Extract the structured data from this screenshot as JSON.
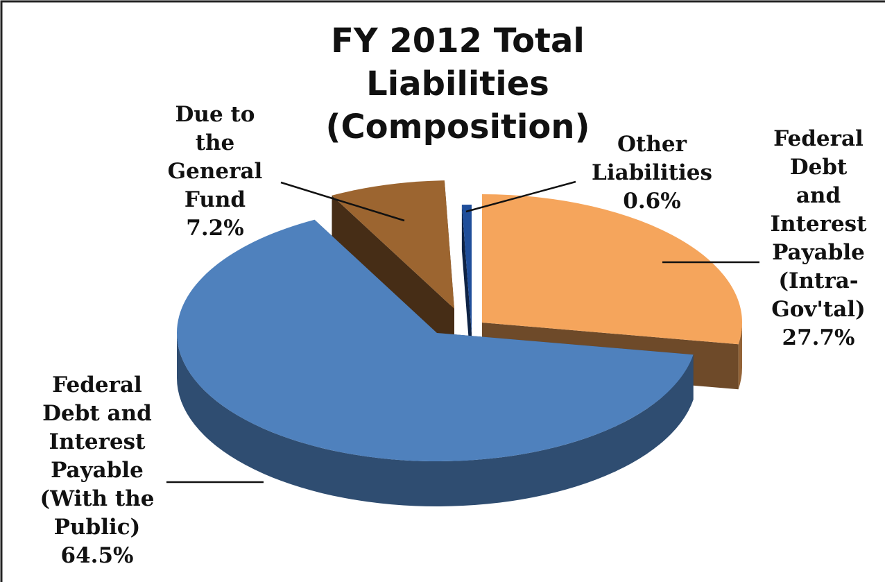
{
  "chart_data": {
    "type": "pie",
    "title": "FY 2012 Total Liabilities\n(Composition)",
    "categories": [
      "Federal\nDebt and\nInterest\nPayable\n(Intra-\nGov'tal)",
      "Federal\nDebt and\nInterest\nPayable\n(With the\nPublic)",
      "Due to\nthe\nGeneral\nFund",
      "Other\nLiabilities"
    ],
    "values": [
      27.7,
      64.5,
      7.2,
      0.6
    ],
    "value_labels": [
      "27.7%",
      "64.5%",
      "7.2%",
      "0.6%"
    ],
    "colors": [
      "#f5a55c",
      "#4f81bd",
      "#9c6530",
      "#1f4e9a"
    ]
  }
}
